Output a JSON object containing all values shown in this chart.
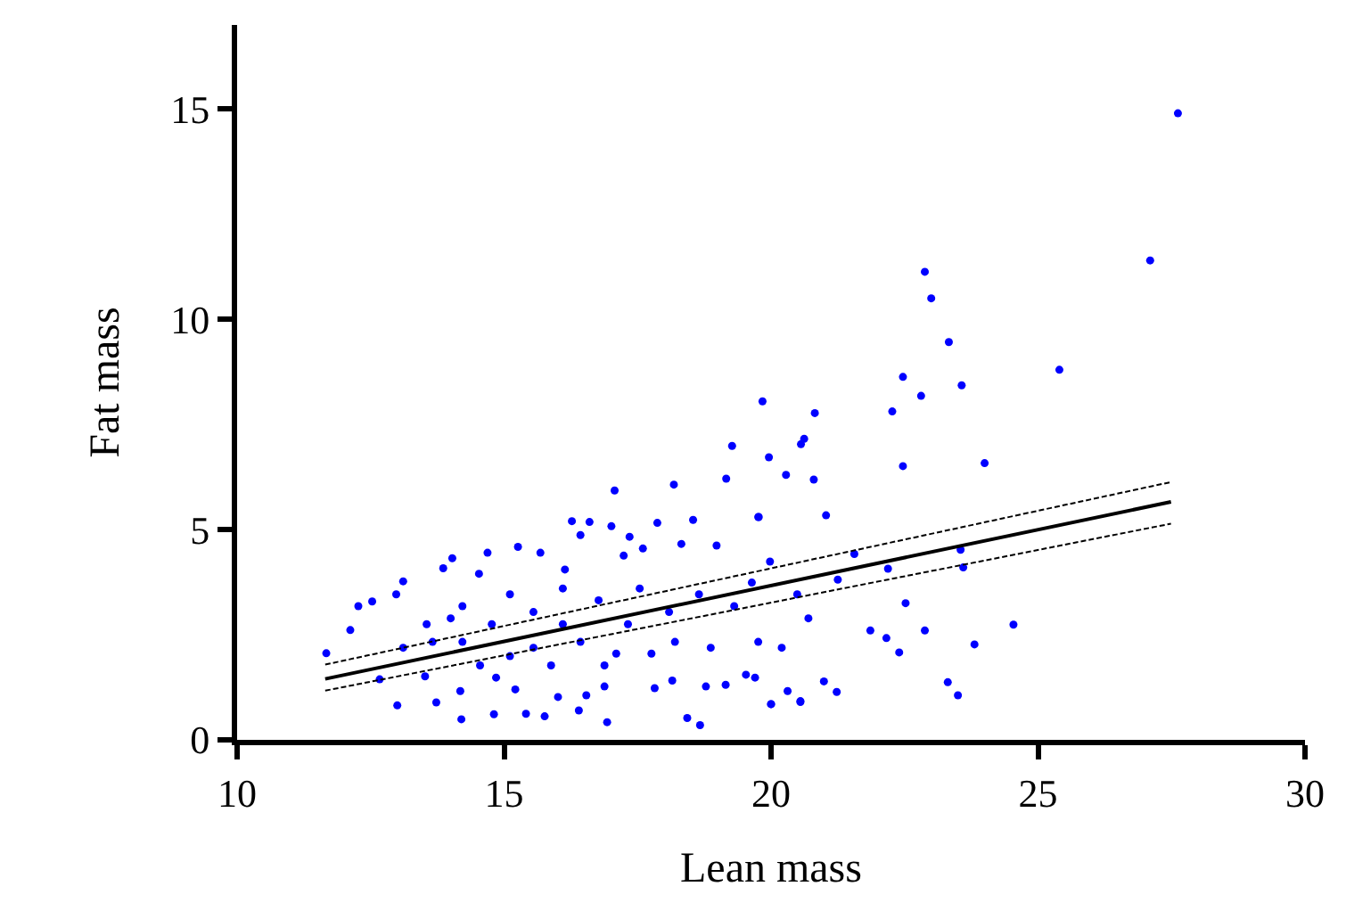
{
  "chart_data": {
    "type": "scatter",
    "xlabel": "Lean mass",
    "ylabel": "Fat mass",
    "xlim": [
      10,
      30
    ],
    "xticks": [
      10,
      15,
      20,
      25,
      30
    ],
    "ylim": [
      0,
      17
    ],
    "yticks": [
      0,
      5,
      10,
      15
    ],
    "series": [
      {
        "marker": "circle",
        "color": "#0000ff",
        "x": [
          27.62,
          27.1,
          22.88,
          23.0,
          23.33,
          22.47,
          22.81,
          23.57,
          25.4,
          22.27,
          22.47,
          24.0,
          19.84,
          20.82,
          20.56,
          20.62,
          19.96,
          20.28,
          20.8,
          24.54,
          23.81,
          23.31,
          23.5,
          23.55,
          23.6,
          22.52,
          22.88,
          22.16,
          22.4,
          21.86,
          22.19,
          21.56,
          21.25,
          21.23,
          20.55,
          20.0,
          20.99,
          21.03,
          19.76,
          11.67,
          12.12,
          12.27,
          12.53,
          13.0,
          12.67,
          13.11,
          12.98,
          13.52,
          13.73,
          13.86,
          14.03,
          14.2,
          14.18,
          14.22,
          14.53,
          14.69,
          14.81,
          14.85,
          15.26,
          15.21,
          15.41,
          15.68,
          15.76,
          16.01,
          16.14,
          16.27,
          16.6,
          16.43,
          16.1,
          16.4,
          16.54,
          16.93,
          16.88,
          17.01,
          17.07,
          17.1,
          17.24,
          17.35,
          17.6,
          17.82,
          17.87,
          18.18,
          18.15,
          18.43,
          18.67,
          18.54,
          18.32,
          18.78,
          19.16,
          18.98,
          19.27,
          19.15,
          19.53,
          19.7,
          19.77,
          20.0,
          20.31,
          20.55,
          20.7,
          20.49,
          14.22,
          14.77,
          15.55,
          15.55,
          16.1,
          16.43,
          16.77,
          16.88,
          17.32,
          17.54,
          17.76,
          18.09,
          18.2,
          18.65,
          18.87,
          19.31,
          19.64,
          19.76,
          13.55,
          13.66,
          13.11,
          14.0,
          15.11,
          15.88,
          14.55,
          15.11,
          19.98,
          20.2
        ],
        "values": [
          14.9,
          11.4,
          11.13,
          10.5,
          9.46,
          8.63,
          8.18,
          8.43,
          8.8,
          7.81,
          6.51,
          6.58,
          8.05,
          7.77,
          7.03,
          7.16,
          6.72,
          6.3,
          6.19,
          2.74,
          2.27,
          1.37,
          1.06,
          4.52,
          4.1,
          3.25,
          2.6,
          2.42,
          2.08,
          2.6,
          4.07,
          4.42,
          3.81,
          1.14,
          0.9,
          0.85,
          1.39,
          5.34,
          5.3,
          2.06,
          2.61,
          3.18,
          3.29,
          0.82,
          1.44,
          3.77,
          3.46,
          1.51,
          0.89,
          4.08,
          4.32,
          0.49,
          1.16,
          3.18,
          3.95,
          4.45,
          0.61,
          1.48,
          4.59,
          1.2,
          0.62,
          4.45,
          0.56,
          1.02,
          4.05,
          5.2,
          5.18,
          4.87,
          2.75,
          0.7,
          1.06,
          0.42,
          1.27,
          5.08,
          5.93,
          2.05,
          4.38,
          4.83,
          4.55,
          1.23,
          5.16,
          6.07,
          1.41,
          0.52,
          0.35,
          5.23,
          4.66,
          1.27,
          6.21,
          4.62,
          6.99,
          1.31,
          1.55,
          1.48,
          5.3,
          0.85,
          1.16,
          0.92,
          2.89,
          3.46,
          2.33,
          2.75,
          3.04,
          2.19,
          3.6,
          2.33,
          3.32,
          1.77,
          2.75,
          3.6,
          2.05,
          3.04,
          2.33,
          3.46,
          2.19,
          3.18,
          3.74,
          2.33,
          2.75,
          2.33,
          2.19,
          2.89,
          3.46,
          1.77,
          1.77,
          1.99,
          4.24,
          2.19
        ]
      },
      {
        "type": "line",
        "marker": "none",
        "color": "#000000",
        "line_style": "solid",
        "x": [
          11.65,
          27.49
        ],
        "values": [
          1.45,
          5.66
        ]
      },
      {
        "type": "line",
        "marker": "none",
        "color": "#000000",
        "line_style": "dashed",
        "x": [
          11.65,
          27.49
        ],
        "values": [
          1.79,
          6.13
        ]
      },
      {
        "type": "line",
        "marker": "none",
        "color": "#000000",
        "line_style": "dashed",
        "x": [
          11.65,
          27.49
        ],
        "values": [
          1.17,
          5.14
        ]
      }
    ]
  }
}
